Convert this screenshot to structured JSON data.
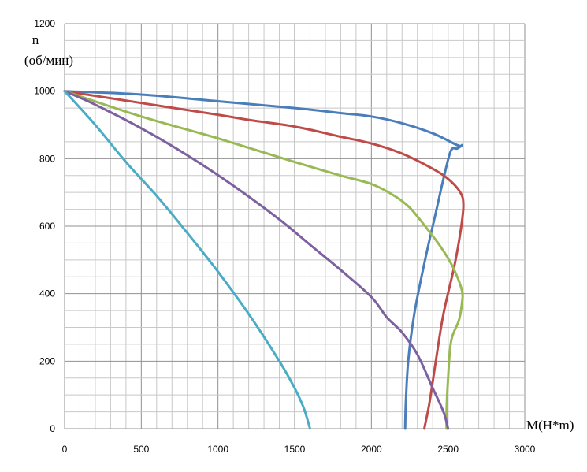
{
  "chart_data": {
    "type": "line",
    "title": "",
    "ylabel_line1": "n",
    "ylabel_line2": "(об/мин)",
    "xlabel": "M(H*m)",
    "xlim": [
      0,
      3000
    ],
    "ylim": [
      0,
      1200
    ],
    "x_ticks": [
      "0",
      "500",
      "1000",
      "1500",
      "2000",
      "2500",
      "3000"
    ],
    "y_ticks": [
      "0",
      "200",
      "400",
      "600",
      "800",
      "1000",
      "1200"
    ],
    "grid": true,
    "series": [
      {
        "color": "#4a7ebb",
        "points": [
          [
            0,
            1000
          ],
          [
            500,
            990
          ],
          [
            1000,
            970
          ],
          [
            1500,
            950
          ],
          [
            1800,
            935
          ],
          [
            2000,
            925
          ],
          [
            2200,
            905
          ],
          [
            2400,
            875
          ],
          [
            2560,
            840
          ],
          [
            2590,
            840
          ],
          [
            2560,
            830
          ],
          [
            2520,
            825
          ],
          [
            2480,
            760
          ],
          [
            2420,
            640
          ],
          [
            2350,
            500
          ],
          [
            2280,
            340
          ],
          [
            2240,
            200
          ],
          [
            2225,
            80
          ],
          [
            2220,
            0
          ]
        ]
      },
      {
        "color": "#be4b48",
        "points": [
          [
            0,
            1000
          ],
          [
            500,
            965
          ],
          [
            1000,
            930
          ],
          [
            1200,
            915
          ],
          [
            1500,
            895
          ],
          [
            1800,
            865
          ],
          [
            2000,
            845
          ],
          [
            2200,
            815
          ],
          [
            2400,
            770
          ],
          [
            2500,
            740
          ],
          [
            2580,
            700
          ],
          [
            2600,
            660
          ],
          [
            2580,
            580
          ],
          [
            2540,
            480
          ],
          [
            2470,
            340
          ],
          [
            2420,
            200
          ],
          [
            2380,
            80
          ],
          [
            2345,
            0
          ]
        ]
      },
      {
        "color": "#98b954",
        "points": [
          [
            0,
            1000
          ],
          [
            500,
            925
          ],
          [
            1000,
            860
          ],
          [
            1500,
            790
          ],
          [
            1800,
            750
          ],
          [
            2000,
            725
          ],
          [
            2150,
            690
          ],
          [
            2250,
            655
          ],
          [
            2350,
            600
          ],
          [
            2450,
            540
          ],
          [
            2530,
            480
          ],
          [
            2590,
            410
          ],
          [
            2590,
            370
          ],
          [
            2570,
            320
          ],
          [
            2520,
            260
          ],
          [
            2500,
            150
          ],
          [
            2490,
            50
          ],
          [
            2490,
            0
          ]
        ]
      },
      {
        "color": "#7d60a0",
        "points": [
          [
            0,
            1000
          ],
          [
            200,
            960
          ],
          [
            500,
            890
          ],
          [
            800,
            810
          ],
          [
            1100,
            720
          ],
          [
            1400,
            620
          ],
          [
            1600,
            545
          ],
          [
            1800,
            470
          ],
          [
            2000,
            390
          ],
          [
            2100,
            330
          ],
          [
            2200,
            285
          ],
          [
            2300,
            220
          ],
          [
            2400,
            120
          ],
          [
            2470,
            50
          ],
          [
            2500,
            0
          ]
        ]
      },
      {
        "color": "#4bacc6",
        "points": [
          [
            0,
            1000
          ],
          [
            200,
            900
          ],
          [
            400,
            790
          ],
          [
            600,
            690
          ],
          [
            800,
            580
          ],
          [
            1000,
            465
          ],
          [
            1200,
            340
          ],
          [
            1400,
            200
          ],
          [
            1500,
            120
          ],
          [
            1560,
            60
          ],
          [
            1600,
            0
          ]
        ]
      }
    ]
  }
}
